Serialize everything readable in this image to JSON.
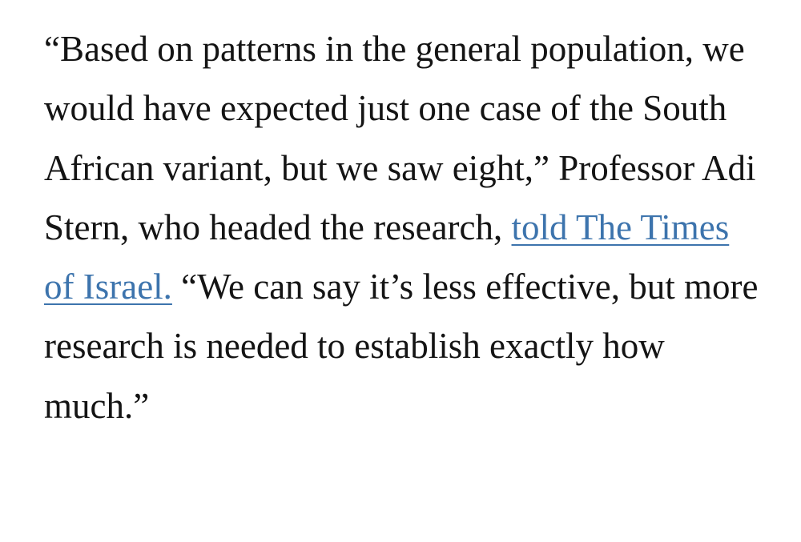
{
  "paragraph": {
    "before": "“Based on patterns in the general population, we would have expected just one case of the South African variant, but we saw eight,” Professor Adi Stern, who headed the research, ",
    "link": "told The Times of Israel.",
    "after": " “We can say it’s less effective, but more research is needed to establish exactly how much.”"
  }
}
